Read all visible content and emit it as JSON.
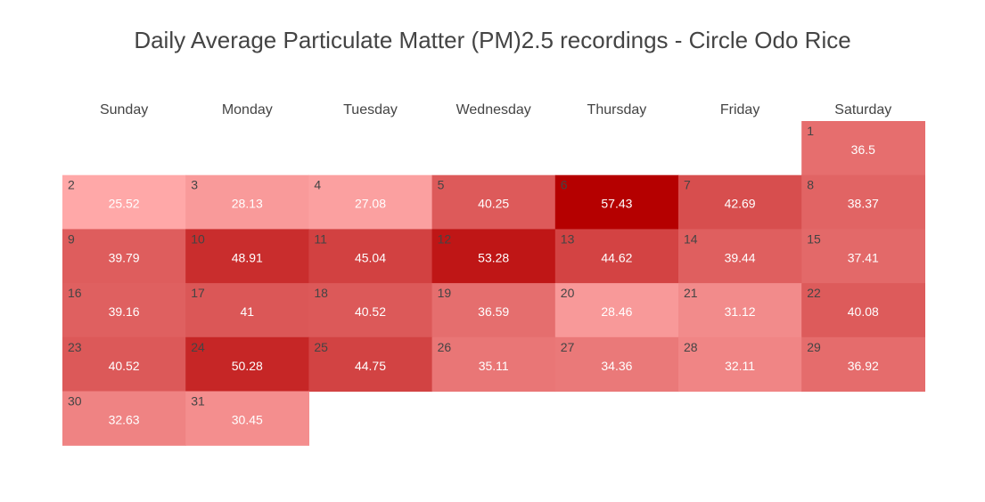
{
  "chart_data": {
    "type": "heatmap",
    "title": "Daily Average Particulate Matter (PM)2.5 recordings - Circle Odo Rice",
    "weekdays": [
      "Sunday",
      "Monday",
      "Tuesday",
      "Wednesday",
      "Thursday",
      "Friday",
      "Saturday"
    ],
    "first_weekday_index": 6,
    "days": [
      1,
      2,
      3,
      4,
      5,
      6,
      7,
      8,
      9,
      10,
      11,
      12,
      13,
      14,
      15,
      16,
      17,
      18,
      19,
      20,
      21,
      22,
      23,
      24,
      25,
      26,
      27,
      28,
      29,
      30,
      31
    ],
    "values": [
      36.5,
      25.52,
      28.13,
      27.08,
      40.25,
      57.43,
      42.69,
      38.37,
      39.79,
      48.91,
      45.04,
      53.28,
      44.62,
      39.44,
      37.41,
      39.16,
      41,
      40.52,
      36.59,
      28.46,
      31.12,
      40.08,
      40.52,
      50.28,
      44.75,
      35.11,
      34.36,
      32.11,
      36.92,
      32.63,
      30.45
    ],
    "value_labels": [
      "36.5",
      "25.52",
      "28.13",
      "27.08",
      "40.25",
      "57.43",
      "42.69",
      "38.37",
      "39.79",
      "48.91",
      "45.04",
      "53.28",
      "44.62",
      "39.44",
      "37.41",
      "39.16",
      "41",
      "40.52",
      "36.59",
      "28.46",
      "31.12",
      "40.08",
      "40.52",
      "50.28",
      "44.75",
      "35.11",
      "34.36",
      "32.11",
      "36.92",
      "32.63",
      "30.45"
    ],
    "color_scale": {
      "min_value": 25.52,
      "max_value": 57.43,
      "min_color": "#ffa8a8",
      "max_color": "#b50000"
    }
  }
}
